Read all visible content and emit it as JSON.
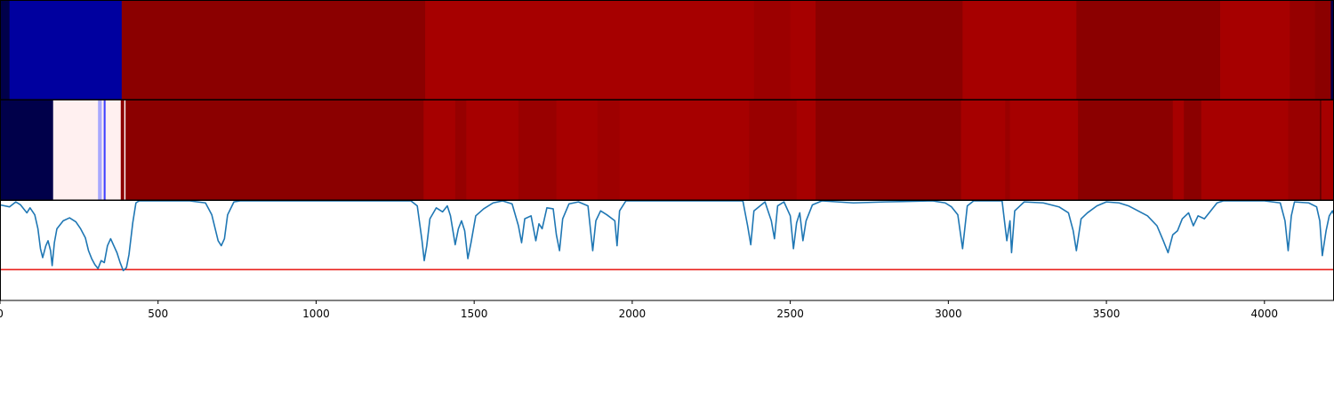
{
  "chart_data": {
    "type": "heatmap",
    "xlim": [
      0,
      4220
    ],
    "x_ticks": [
      0,
      500,
      1000,
      1500,
      2000,
      2500,
      3000,
      3500,
      4000
    ],
    "x_tick_labels": [
      "0",
      "500",
      "1000",
      "1500",
      "2000",
      "2500",
      "3000",
      "3500",
      "4000"
    ],
    "grid": false,
    "legend": "none",
    "colors": {
      "line": "#1f77b4",
      "threshold": "#e8221c",
      "dark_red": "#8b0000",
      "red": "#a60000",
      "navy": "#00004a",
      "blue": "#00009f",
      "pale_pink": "#fff0f0",
      "light_blue": "#a8a8ff"
    },
    "heatmap_rows": [
      {
        "row": 1,
        "segments": [
          {
            "x0": 0,
            "x1": 30,
            "color": "#00004a"
          },
          {
            "x0": 30,
            "x1": 385,
            "color": "#00009f"
          },
          {
            "x0": 385,
            "x1": 1345,
            "color": "#8b0000"
          },
          {
            "x0": 1345,
            "x1": 2385,
            "color": "#a60000"
          },
          {
            "x0": 2385,
            "x1": 2500,
            "color": "#9c0000"
          },
          {
            "x0": 2500,
            "x1": 2580,
            "color": "#a60000"
          },
          {
            "x0": 2580,
            "x1": 3045,
            "color": "#8b0000"
          },
          {
            "x0": 3045,
            "x1": 3405,
            "color": "#a60000"
          },
          {
            "x0": 3405,
            "x1": 3860,
            "color": "#8b0000"
          },
          {
            "x0": 3860,
            "x1": 4080,
            "color": "#a60000"
          },
          {
            "x0": 4080,
            "x1": 4160,
            "color": "#960000"
          },
          {
            "x0": 4160,
            "x1": 4210,
            "color": "#8b0000"
          },
          {
            "x0": 4210,
            "x1": 4220,
            "color": "#00004a"
          }
        ]
      },
      {
        "row": 2,
        "segments": [
          {
            "x0": 0,
            "x1": 168,
            "color": "#00004a"
          },
          {
            "x0": 168,
            "x1": 310,
            "color": "#fff0f0"
          },
          {
            "x0": 310,
            "x1": 322,
            "color": "#a8a8ff"
          },
          {
            "x0": 322,
            "x1": 328,
            "color": "#fff0f0"
          },
          {
            "x0": 328,
            "x1": 334,
            "color": "#4040ff"
          },
          {
            "x0": 334,
            "x1": 382,
            "color": "#fff0f0"
          },
          {
            "x0": 382,
            "x1": 393,
            "color": "#8b0000"
          },
          {
            "x0": 393,
            "x1": 397,
            "color": "#ffffff"
          },
          {
            "x0": 397,
            "x1": 1340,
            "color": "#8b0000"
          },
          {
            "x0": 1340,
            "x1": 1440,
            "color": "#a60000"
          },
          {
            "x0": 1440,
            "x1": 1475,
            "color": "#960000"
          },
          {
            "x0": 1475,
            "x1": 1640,
            "color": "#a60000"
          },
          {
            "x0": 1640,
            "x1": 1760,
            "color": "#990000"
          },
          {
            "x0": 1760,
            "x1": 1890,
            "color": "#a60000"
          },
          {
            "x0": 1890,
            "x1": 1960,
            "color": "#9e0000"
          },
          {
            "x0": 1960,
            "x1": 2370,
            "color": "#a60000"
          },
          {
            "x0": 2370,
            "x1": 2520,
            "color": "#990000"
          },
          {
            "x0": 2520,
            "x1": 2580,
            "color": "#a60000"
          },
          {
            "x0": 2580,
            "x1": 3040,
            "color": "#8b0000"
          },
          {
            "x0": 3040,
            "x1": 3180,
            "color": "#a60000"
          },
          {
            "x0": 3180,
            "x1": 3195,
            "color": "#990000"
          },
          {
            "x0": 3195,
            "x1": 3410,
            "color": "#a60000"
          },
          {
            "x0": 3410,
            "x1": 3710,
            "color": "#8b0000"
          },
          {
            "x0": 3710,
            "x1": 3745,
            "color": "#a60000"
          },
          {
            "x0": 3745,
            "x1": 3800,
            "color": "#8b0000"
          },
          {
            "x0": 3800,
            "x1": 4075,
            "color": "#a60000"
          },
          {
            "x0": 4075,
            "x1": 4175,
            "color": "#990000"
          },
          {
            "x0": 4175,
            "x1": 4180,
            "color": "#6a0000"
          },
          {
            "x0": 4180,
            "x1": 4220,
            "color": "#a60000"
          }
        ]
      }
    ],
    "line_series": {
      "ylim": [
        0,
        1
      ],
      "threshold": 0.31,
      "points": [
        [
          0,
          0.96
        ],
        [
          30,
          0.94
        ],
        [
          50,
          0.99
        ],
        [
          65,
          0.96
        ],
        [
          85,
          0.88
        ],
        [
          95,
          0.93
        ],
        [
          110,
          0.86
        ],
        [
          120,
          0.72
        ],
        [
          128,
          0.52
        ],
        [
          135,
          0.43
        ],
        [
          145,
          0.55
        ],
        [
          152,
          0.6
        ],
        [
          160,
          0.5
        ],
        [
          165,
          0.35
        ],
        [
          172,
          0.58
        ],
        [
          180,
          0.72
        ],
        [
          200,
          0.8
        ],
        [
          220,
          0.83
        ],
        [
          240,
          0.79
        ],
        [
          255,
          0.72
        ],
        [
          270,
          0.63
        ],
        [
          280,
          0.5
        ],
        [
          290,
          0.42
        ],
        [
          300,
          0.36
        ],
        [
          310,
          0.32
        ],
        [
          320,
          0.4
        ],
        [
          330,
          0.38
        ],
        [
          340,
          0.55
        ],
        [
          350,
          0.62
        ],
        [
          360,
          0.55
        ],
        [
          370,
          0.48
        ],
        [
          380,
          0.38
        ],
        [
          390,
          0.3
        ],
        [
          400,
          0.33
        ],
        [
          408,
          0.46
        ],
        [
          420,
          0.78
        ],
        [
          430,
          0.98
        ],
        [
          440,
          1.0
        ],
        [
          600,
          1.0
        ],
        [
          650,
          0.98
        ],
        [
          670,
          0.86
        ],
        [
          690,
          0.6
        ],
        [
          700,
          0.55
        ],
        [
          710,
          0.62
        ],
        [
          720,
          0.86
        ],
        [
          740,
          0.99
        ],
        [
          760,
          1.0
        ],
        [
          1300,
          1.0
        ],
        [
          1320,
          0.95
        ],
        [
          1335,
          0.6
        ],
        [
          1342,
          0.4
        ],
        [
          1350,
          0.55
        ],
        [
          1360,
          0.82
        ],
        [
          1380,
          0.93
        ],
        [
          1400,
          0.89
        ],
        [
          1415,
          0.95
        ],
        [
          1425,
          0.85
        ],
        [
          1440,
          0.56
        ],
        [
          1450,
          0.72
        ],
        [
          1460,
          0.8
        ],
        [
          1470,
          0.7
        ],
        [
          1480,
          0.42
        ],
        [
          1490,
          0.58
        ],
        [
          1505,
          0.85
        ],
        [
          1530,
          0.92
        ],
        [
          1560,
          0.98
        ],
        [
          1590,
          1.0
        ],
        [
          1620,
          0.97
        ],
        [
          1640,
          0.75
        ],
        [
          1650,
          0.58
        ],
        [
          1660,
          0.82
        ],
        [
          1680,
          0.85
        ],
        [
          1695,
          0.6
        ],
        [
          1705,
          0.77
        ],
        [
          1715,
          0.72
        ],
        [
          1730,
          0.93
        ],
        [
          1750,
          0.92
        ],
        [
          1760,
          0.66
        ],
        [
          1770,
          0.5
        ],
        [
          1780,
          0.82
        ],
        [
          1800,
          0.97
        ],
        [
          1830,
          0.99
        ],
        [
          1860,
          0.95
        ],
        [
          1875,
          0.5
        ],
        [
          1885,
          0.8
        ],
        [
          1900,
          0.9
        ],
        [
          1920,
          0.86
        ],
        [
          1945,
          0.8
        ],
        [
          1952,
          0.55
        ],
        [
          1960,
          0.9
        ],
        [
          1980,
          1.0
        ],
        [
          2350,
          1.0
        ],
        [
          2365,
          0.75
        ],
        [
          2375,
          0.56
        ],
        [
          2385,
          0.9
        ],
        [
          2420,
          0.99
        ],
        [
          2440,
          0.8
        ],
        [
          2450,
          0.62
        ],
        [
          2460,
          0.95
        ],
        [
          2480,
          0.99
        ],
        [
          2500,
          0.85
        ],
        [
          2510,
          0.52
        ],
        [
          2520,
          0.78
        ],
        [
          2530,
          0.88
        ],
        [
          2540,
          0.6
        ],
        [
          2550,
          0.8
        ],
        [
          2570,
          0.96
        ],
        [
          2600,
          1.0
        ],
        [
          2650,
          0.99
        ],
        [
          2700,
          0.98
        ],
        [
          2800,
          0.99
        ],
        [
          2950,
          1.0
        ],
        [
          2990,
          0.98
        ],
        [
          3010,
          0.94
        ],
        [
          3030,
          0.86
        ],
        [
          3045,
          0.52
        ],
        [
          3060,
          0.95
        ],
        [
          3080,
          1.0
        ],
        [
          3170,
          1.0
        ],
        [
          3185,
          0.6
        ],
        [
          3195,
          0.8
        ],
        [
          3200,
          0.48
        ],
        [
          3210,
          0.9
        ],
        [
          3240,
          0.99
        ],
        [
          3300,
          0.98
        ],
        [
          3350,
          0.94
        ],
        [
          3380,
          0.88
        ],
        [
          3395,
          0.7
        ],
        [
          3405,
          0.5
        ],
        [
          3420,
          0.82
        ],
        [
          3440,
          0.88
        ],
        [
          3470,
          0.95
        ],
        [
          3500,
          0.99
        ],
        [
          3540,
          0.98
        ],
        [
          3570,
          0.95
        ],
        [
          3600,
          0.9
        ],
        [
          3630,
          0.85
        ],
        [
          3660,
          0.75
        ],
        [
          3680,
          0.6
        ],
        [
          3695,
          0.48
        ],
        [
          3710,
          0.66
        ],
        [
          3725,
          0.7
        ],
        [
          3740,
          0.82
        ],
        [
          3760,
          0.88
        ],
        [
          3775,
          0.75
        ],
        [
          3790,
          0.85
        ],
        [
          3810,
          0.82
        ],
        [
          3830,
          0.9
        ],
        [
          3850,
          0.98
        ],
        [
          3870,
          1.0
        ],
        [
          4000,
          1.0
        ],
        [
          4050,
          0.98
        ],
        [
          4065,
          0.8
        ],
        [
          4075,
          0.5
        ],
        [
          4085,
          0.85
        ],
        [
          4095,
          0.99
        ],
        [
          4140,
          0.98
        ],
        [
          4165,
          0.94
        ],
        [
          4175,
          0.8
        ],
        [
          4183,
          0.45
        ],
        [
          4195,
          0.7
        ],
        [
          4205,
          0.85
        ],
        [
          4215,
          0.9
        ],
        [
          4220,
          0.86
        ]
      ]
    }
  }
}
